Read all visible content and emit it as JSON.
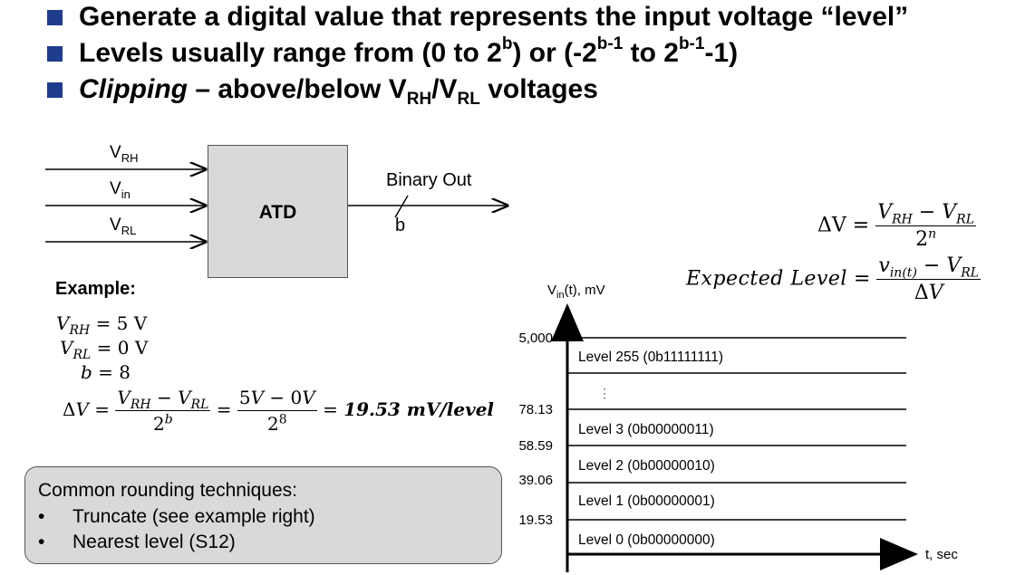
{
  "bullets": {
    "b1": "Generate a digital value that represents the input voltage “level”",
    "b2": {
      "pre": "Levels usually range from (0 to 2",
      "sup1": "b",
      "mid": ") or (-2",
      "sup2": "b-1",
      "mid2": " to 2",
      "sup3": "b-1",
      "post": "-1)"
    },
    "b3": {
      "italic": "Clipping",
      "pre": " – above/below V",
      "sub1": "RH",
      "slash": "/V",
      "sub2": "RL",
      "post": " voltages"
    }
  },
  "atd": {
    "block_label": "ATD",
    "inputs": [
      {
        "base": "V",
        "sub": "RH"
      },
      {
        "base": "V",
        "sub": "in"
      },
      {
        "base": "V",
        "sub": "RL"
      }
    ],
    "output_label": "Binary Out",
    "bus_width": "b"
  },
  "formulas": {
    "dv_lhs": "ΔV =",
    "dv_num": "V_RH − V_RL",
    "dv_den": "2^n",
    "expected_lhs": "Expected Level =",
    "expected_num": "v_in(t) − V_RL",
    "expected_den": "ΔV"
  },
  "example": {
    "title": "Example:",
    "vrh": "= 5 V",
    "vrl": "= 0 V",
    "b": "b = 8",
    "result": "19.53 mV/level"
  },
  "graph": {
    "y_label": "V",
    "y_label_sub": "in",
    "y_label_post": "(t), mV",
    "x_label": "t, sec",
    "ticks": [
      "5,000",
      "78.13",
      "58.59",
      "39.06",
      "19.53"
    ],
    "levels": [
      "Level 255 (0b11111111)",
      "⋮",
      "Level 3 (0b00000011)",
      "Level 2 (0b00000010)",
      "Level 1 (0b00000001)",
      "Level 0 (0b00000000)"
    ]
  },
  "rounding": {
    "title": "Common rounding techniques:",
    "items": [
      "Truncate (see example right)",
      "Nearest level (S12)"
    ],
    "bullet": "•"
  },
  "colors": {
    "bullet": "#1f3d8c",
    "box_fill": "#d9d9d9"
  }
}
